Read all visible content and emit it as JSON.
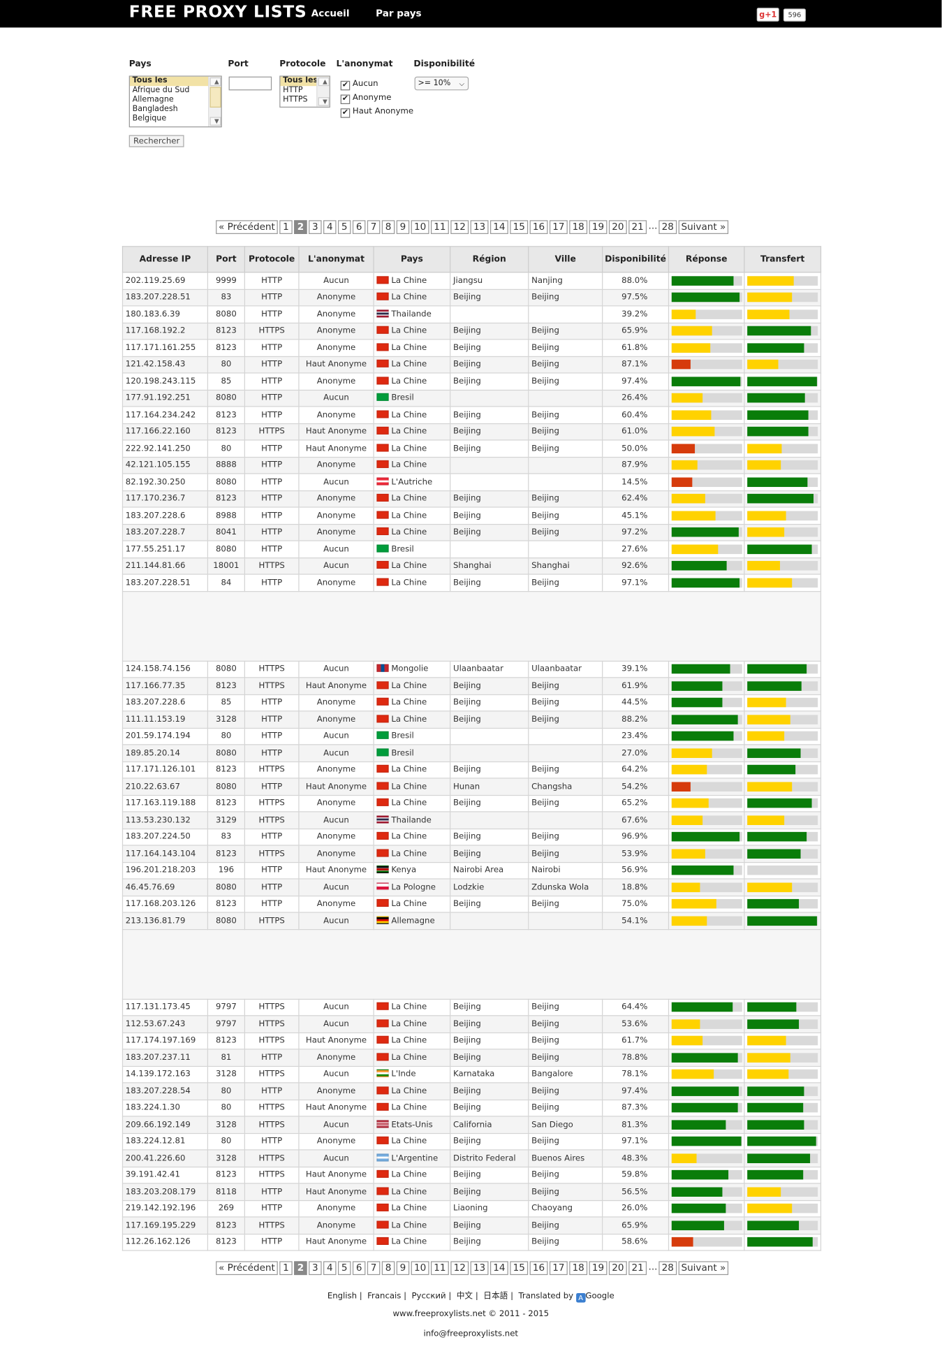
{
  "header": {
    "logo": "FREE PROXY LISTS",
    "nav": [
      "Accueil",
      "Par pays"
    ],
    "gplus_label": "g+1",
    "gplus_count": "596"
  },
  "filters": {
    "pays_label": "Pays",
    "port_label": "Port",
    "protocole_label": "Protocole",
    "anonymat_label": "L'anonymat",
    "dispo_label": "Disponibilité",
    "pays_options": [
      "Tous les",
      "Afrique du Sud",
      "Allemagne",
      "Bangladesh",
      "Belgique"
    ],
    "protocole_options": [
      "Tous les",
      "HTTP",
      "HTTPS"
    ],
    "anonymat_options": [
      "Aucun",
      "Anonyme",
      "Haut Anonyme"
    ],
    "dispo_value": ">= 10%",
    "search_button": "Rechercher"
  },
  "pagination": {
    "prev": "« Précédent",
    "next": "Suivant »",
    "pages": [
      "1",
      "2",
      "3",
      "4",
      "5",
      "6",
      "7",
      "8",
      "9",
      "10",
      "11",
      "12",
      "13",
      "14",
      "15",
      "16",
      "17",
      "18",
      "19",
      "20",
      "21"
    ],
    "dots": "...",
    "last": "28",
    "current": "2"
  },
  "table": {
    "headers": [
      "Adresse IP",
      "Port",
      "Protocole",
      "L'anonymat",
      "Pays",
      "Région",
      "Ville",
      "Disponibilité",
      "Réponse",
      "Transfert"
    ],
    "colors": {
      "green": "#0a7d0a",
      "yellow": "#ffd200",
      "red": "#d63b0c"
    },
    "flags": {
      "cn": "#de2910",
      "th": "linear-gradient(#a51931 0 17%,#f4f5f8 17% 33%,#2d2a4a 33% 67%,#f4f5f8 67% 83%,#a51931 83%)",
      "br": "#009c3b",
      "at": "linear-gradient(#ed2939 0 33%,#fff 33% 67%,#ed2939 67%)",
      "mn": "linear-gradient(90deg,#c4272f 0 33%,#015197 33% 67%,#c4272f 67%)",
      "ke": "linear-gradient(#000 0 30%,#fff 30% 36%,#bb0000 36% 64%,#fff 64% 70%,#006600 70%)",
      "pl": "linear-gradient(#fff 0 50%,#dc143c 50%)",
      "de": "linear-gradient(#000 0 33%,#dd0000 33% 67%,#ffce00 67%)",
      "in": "linear-gradient(#ff9933 0 33%,#fff 33% 67%,#138808 67%)",
      "us": "repeating-linear-gradient(#b22234 0 1px,#fff 1px 2px)",
      "ar": "linear-gradient(#74acdf 0 33%,#fff 33% 67%,#74acdf 67%)"
    },
    "groups": [
      [
        [
          "202.119.25.69",
          "9999",
          "HTTP",
          "Aucun",
          "cn",
          "La Chine",
          "Jiangsu",
          "Nanjing",
          "88.0%",
          [
            "green",
            0.88
          ],
          [
            "yellow",
            0.66
          ]
        ],
        [
          "183.207.228.51",
          "83",
          "HTTP",
          "Anonyme",
          "cn",
          "La Chine",
          "Beijing",
          "Beijing",
          "97.5%",
          [
            "green",
            0.97
          ],
          [
            "yellow",
            0.63
          ]
        ],
        [
          "180.183.6.39",
          "8080",
          "HTTP",
          "Anonyme",
          "th",
          "Thailande",
          "",
          "",
          "39.2%",
          [
            "yellow",
            0.35
          ],
          [
            "yellow",
            0.6
          ]
        ],
        [
          "117.168.192.2",
          "8123",
          "HTTPS",
          "Anonyme",
          "cn",
          "La Chine",
          "Beijing",
          "Beijing",
          "65.9%",
          [
            "yellow",
            0.58
          ],
          [
            "green",
            0.9
          ]
        ],
        [
          "117.171.161.255",
          "8123",
          "HTTP",
          "Anonyme",
          "cn",
          "La Chine",
          "Beijing",
          "Beijing",
          "61.8%",
          [
            "yellow",
            0.56
          ],
          [
            "green",
            0.8
          ]
        ],
        [
          "121.42.158.43",
          "80",
          "HTTP",
          "Haut Anonyme",
          "cn",
          "La Chine",
          "Beijing",
          "Beijing",
          "87.1%",
          [
            "red",
            0.27
          ],
          [
            "yellow",
            0.44
          ]
        ],
        [
          "120.198.243.115",
          "85",
          "HTTP",
          "Anonyme",
          "cn",
          "La Chine",
          "Beijing",
          "Beijing",
          "97.4%",
          [
            "green",
            0.98
          ],
          [
            "green",
            0.99
          ]
        ],
        [
          "177.91.192.251",
          "8080",
          "HTTP",
          "Aucun",
          "br",
          "Bresil",
          "",
          "",
          "26.4%",
          [
            "yellow",
            0.44
          ],
          [
            "green",
            0.82
          ]
        ],
        [
          "117.164.234.242",
          "8123",
          "HTTP",
          "Anonyme",
          "cn",
          "La Chine",
          "Beijing",
          "Beijing",
          "60.4%",
          [
            "yellow",
            0.57
          ],
          [
            "green",
            0.87
          ]
        ],
        [
          "117.166.22.160",
          "8123",
          "HTTPS",
          "Haut Anonyme",
          "cn",
          "La Chine",
          "Beijing",
          "Beijing",
          "61.0%",
          [
            "yellow",
            0.61
          ],
          [
            "green",
            0.87
          ]
        ],
        [
          "222.92.141.250",
          "80",
          "HTTP",
          "Haut Anonyme",
          "cn",
          "La Chine",
          "Beijing",
          "Beijing",
          "50.0%",
          [
            "red",
            0.33
          ],
          [
            "yellow",
            0.49
          ]
        ],
        [
          "42.121.105.155",
          "8888",
          "HTTP",
          "Anonyme",
          "cn",
          "La Chine",
          "",
          "",
          "87.9%",
          [
            "yellow",
            0.37
          ],
          [
            "yellow",
            0.47
          ]
        ],
        [
          "82.192.30.250",
          "8080",
          "HTTP",
          "Aucun",
          "at",
          "L'Autriche",
          "",
          "",
          "14.5%",
          [
            "red",
            0.3
          ],
          [
            "green",
            0.85
          ]
        ],
        [
          "117.170.236.7",
          "8123",
          "HTTP",
          "Anonyme",
          "cn",
          "La Chine",
          "Beijing",
          "Beijing",
          "62.4%",
          [
            "yellow",
            0.48
          ],
          [
            "green",
            0.94
          ]
        ],
        [
          "183.207.228.6",
          "8988",
          "HTTP",
          "Anonyme",
          "cn",
          "La Chine",
          "Beijing",
          "Beijing",
          "45.1%",
          [
            "yellow",
            0.63
          ],
          [
            "yellow",
            0.55
          ]
        ],
        [
          "183.207.228.7",
          "8041",
          "HTTP",
          "Anonyme",
          "cn",
          "La Chine",
          "Beijing",
          "Beijing",
          "97.2%",
          [
            "green",
            0.96
          ],
          [
            "yellow",
            0.52
          ]
        ],
        [
          "177.55.251.17",
          "8080",
          "HTTP",
          "Aucun",
          "br",
          "Bresil",
          "",
          "",
          "27.6%",
          [
            "yellow",
            0.66
          ],
          [
            "green",
            0.91
          ]
        ],
        [
          "211.144.81.66",
          "18001",
          "HTTPS",
          "Aucun",
          "cn",
          "La Chine",
          "Shanghai",
          "Shanghai",
          "92.6%",
          [
            "green",
            0.79
          ],
          [
            "yellow",
            0.46
          ]
        ],
        [
          "183.207.228.51",
          "84",
          "HTTP",
          "Anonyme",
          "cn",
          "La Chine",
          "Beijing",
          "Beijing",
          "97.1%",
          [
            "green",
            0.97
          ],
          [
            "yellow",
            0.63
          ]
        ]
      ],
      [
        [
          "124.158.74.156",
          "8080",
          "HTTPS",
          "Aucun",
          "mn",
          "Mongolie",
          "Ulaanbaatar",
          "Ulaanbaatar",
          "39.1%",
          [
            "green",
            0.83
          ],
          [
            "green",
            0.84
          ]
        ],
        [
          "117.166.77.35",
          "8123",
          "HTTPS",
          "Haut Anonyme",
          "cn",
          "La Chine",
          "Beijing",
          "Beijing",
          "61.9%",
          [
            "green",
            0.72
          ],
          [
            "green",
            0.77
          ]
        ],
        [
          "183.207.228.6",
          "85",
          "HTTP",
          "Anonyme",
          "cn",
          "La Chine",
          "Beijing",
          "Beijing",
          "44.5%",
          [
            "green",
            0.72
          ],
          [
            "yellow",
            0.55
          ]
        ],
        [
          "111.11.153.19",
          "3128",
          "HTTP",
          "Anonyme",
          "cn",
          "La Chine",
          "Beijing",
          "Beijing",
          "88.2%",
          [
            "green",
            0.95
          ],
          [
            "yellow",
            0.61
          ]
        ],
        [
          "201.59.174.194",
          "80",
          "HTTP",
          "Aucun",
          "br",
          "Bresil",
          "",
          "",
          "23.4%",
          [
            "green",
            0.89
          ],
          [
            "yellow",
            0.52
          ]
        ],
        [
          "189.85.20.14",
          "8080",
          "HTTP",
          "Aucun",
          "br",
          "Bresil",
          "",
          "",
          "27.0%",
          [
            "yellow",
            0.58
          ],
          [
            "green",
            0.75
          ]
        ],
        [
          "117.171.126.101",
          "8123",
          "HTTPS",
          "Anonyme",
          "cn",
          "La Chine",
          "Beijing",
          "Beijing",
          "64.2%",
          [
            "yellow",
            0.51
          ],
          [
            "green",
            0.68
          ]
        ],
        [
          "210.22.63.67",
          "8080",
          "HTTP",
          "Haut Anonyme",
          "cn",
          "La Chine",
          "Hunan",
          "Changsha",
          "54.2%",
          [
            "red",
            0.28
          ],
          [
            "yellow",
            0.64
          ]
        ],
        [
          "117.163.119.188",
          "8123",
          "HTTPS",
          "Anonyme",
          "cn",
          "La Chine",
          "Beijing",
          "Beijing",
          "65.2%",
          [
            "yellow",
            0.53
          ],
          [
            "green",
            0.91
          ]
        ],
        [
          "113.53.230.132",
          "3129",
          "HTTPS",
          "Aucun",
          "th",
          "Thailande",
          "",
          "",
          "67.6%",
          [
            "yellow",
            0.44
          ],
          [
            "yellow",
            0.53
          ]
        ],
        [
          "183.207.224.50",
          "83",
          "HTTP",
          "Anonyme",
          "cn",
          "La Chine",
          "Beijing",
          "Beijing",
          "96.9%",
          [
            "green",
            0.97
          ],
          [
            "green",
            0.84
          ]
        ],
        [
          "117.164.143.104",
          "8123",
          "HTTPS",
          "Anonyme",
          "cn",
          "La Chine",
          "Beijing",
          "Beijing",
          "53.9%",
          [
            "yellow",
            0.48
          ],
          [
            "green",
            0.76
          ]
        ],
        [
          "196.201.218.203",
          "196",
          "HTTP",
          "Haut Anonyme",
          "ke",
          "Kenya",
          "Nairobi Area",
          "Nairobi",
          "56.9%",
          [
            "green",
            0.89
          ],
          [
            "green",
            0
          ]
        ],
        [
          "46.45.76.69",
          "8080",
          "HTTP",
          "Aucun",
          "pl",
          "La Pologne",
          "Lodzkie",
          "Zdunska Wola",
          "18.8%",
          [
            "yellow",
            0.41
          ],
          [
            "yellow",
            0.63
          ]
        ],
        [
          "117.168.203.126",
          "8123",
          "HTTP",
          "Anonyme",
          "cn",
          "La Chine",
          "Beijing",
          "Beijing",
          "75.0%",
          [
            "yellow",
            0.64
          ],
          [
            "green",
            0.73
          ]
        ],
        [
          "213.136.81.79",
          "8080",
          "HTTPS",
          "Aucun",
          "de",
          "Allemagne",
          "",
          "",
          "54.1%",
          [
            "yellow",
            0.51
          ],
          [
            "green",
            0.99
          ]
        ]
      ],
      [
        [
          "117.131.173.45",
          "9797",
          "HTTPS",
          "Aucun",
          "cn",
          "La Chine",
          "Beijing",
          "Beijing",
          "64.4%",
          [
            "green",
            0.87
          ],
          [
            "green",
            0.7
          ]
        ],
        [
          "112.53.67.243",
          "9797",
          "HTTPS",
          "Aucun",
          "cn",
          "La Chine",
          "Beijing",
          "Beijing",
          "53.6%",
          [
            "yellow",
            0.41
          ],
          [
            "green",
            0.73
          ]
        ],
        [
          "117.174.197.169",
          "8123",
          "HTTPS",
          "Haut Anonyme",
          "cn",
          "La Chine",
          "Beijing",
          "Beijing",
          "61.7%",
          [
            "yellow",
            0.45
          ],
          [
            "yellow",
            0.55
          ]
        ],
        [
          "183.207.237.11",
          "81",
          "HTTP",
          "Anonyme",
          "cn",
          "La Chine",
          "Beijing",
          "Beijing",
          "78.8%",
          [
            "green",
            0.94
          ],
          [
            "yellow",
            0.61
          ]
        ],
        [
          "14.139.172.163",
          "3128",
          "HTTPS",
          "Aucun",
          "in",
          "L'Inde",
          "Karnataka",
          "Bangalore",
          "78.1%",
          [
            "yellow",
            0.6
          ],
          [
            "yellow",
            0.58
          ]
        ],
        [
          "183.207.228.54",
          "80",
          "HTTP",
          "Anonyme",
          "cn",
          "La Chine",
          "Beijing",
          "Beijing",
          "97.4%",
          [
            "green",
            0.96
          ],
          [
            "green",
            0.8
          ]
        ],
        [
          "183.224.1.30",
          "80",
          "HTTPS",
          "Haut Anonyme",
          "cn",
          "La Chine",
          "Beijing",
          "Beijing",
          "87.3%",
          [
            "green",
            0.95
          ],
          [
            "green",
            0.79
          ]
        ],
        [
          "209.66.192.149",
          "3128",
          "HTTPS",
          "Aucun",
          "us",
          "Etats-Unis",
          "California",
          "San Diego",
          "81.3%",
          [
            "green",
            0.77
          ],
          [
            "green",
            0.81
          ]
        ],
        [
          "183.224.12.81",
          "80",
          "HTTP",
          "Anonyme",
          "cn",
          "La Chine",
          "Beijing",
          "Beijing",
          "97.1%",
          [
            "green",
            0.99
          ],
          [
            "green",
            0.98
          ]
        ],
        [
          "200.41.226.60",
          "3128",
          "HTTPS",
          "Aucun",
          "ar",
          "L'Argentine",
          "Distrito Federal",
          "Buenos Aires",
          "48.3%",
          [
            "yellow",
            0.36
          ],
          [
            "green",
            0.89
          ]
        ],
        [
          "39.191.42.41",
          "8123",
          "HTTPS",
          "Haut Anonyme",
          "cn",
          "La Chine",
          "Beijing",
          "Beijing",
          "59.8%",
          [
            "green",
            0.81
          ],
          [
            "green",
            0.79
          ]
        ],
        [
          "183.203.208.179",
          "8118",
          "HTTP",
          "Haut Anonyme",
          "cn",
          "La Chine",
          "Beijing",
          "Beijing",
          "56.5%",
          [
            "green",
            0.72
          ],
          [
            "yellow",
            0.47
          ]
        ],
        [
          "219.142.192.196",
          "269",
          "HTTP",
          "Anonyme",
          "cn",
          "La Chine",
          "Liaoning",
          "Chaoyang",
          "26.0%",
          [
            "green",
            0.78
          ],
          [
            "yellow",
            0.63
          ]
        ],
        [
          "117.169.195.229",
          "8123",
          "HTTPS",
          "Anonyme",
          "cn",
          "La Chine",
          "Beijing",
          "Beijing",
          "65.9%",
          [
            "green",
            0.75
          ],
          [
            "green",
            0.73
          ]
        ],
        [
          "112.26.162.126",
          "8123",
          "HTTP",
          "Haut Anonyme",
          "cn",
          "La Chine",
          "Beijing",
          "Beijing",
          "58.6%",
          [
            "red",
            0.31
          ],
          [
            "green",
            0.93
          ]
        ]
      ]
    ]
  },
  "footer": {
    "languages": [
      "English",
      "Francais",
      "Русский",
      "中文",
      "日本語"
    ],
    "translated_by": "Translated by",
    "google": "Google",
    "copyright": "www.freeproxylists.net © 2011 - 2015",
    "email": "info@freeproxylists.net"
  }
}
